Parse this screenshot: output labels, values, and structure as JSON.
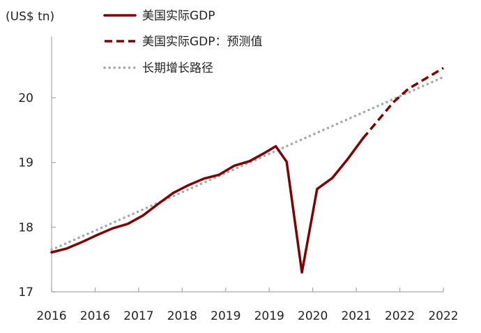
{
  "chart_data": {
    "type": "line",
    "title": "",
    "unit_label": "(US$ tn)",
    "xlabel": "",
    "ylabel": "(US$ tn)",
    "ylim": [
      17,
      20.95
    ],
    "y_ticks": [
      17,
      18,
      19,
      20
    ],
    "x_range": [
      0,
      18
    ],
    "x_ticks": [
      {
        "pos": 0,
        "label": "2016"
      },
      {
        "pos": 2,
        "label": "2016"
      },
      {
        "pos": 4,
        "label": "2017"
      },
      {
        "pos": 6,
        "label": "2018"
      },
      {
        "pos": 8,
        "label": "2019"
      },
      {
        "pos": 10,
        "label": "2019"
      },
      {
        "pos": 12,
        "label": "2020"
      },
      {
        "pos": 14,
        "label": "2021"
      },
      {
        "pos": 16,
        "label": "2022"
      },
      {
        "pos": 18,
        "label": "2022"
      }
    ],
    "grid": false,
    "legend_position": "top-center",
    "series": [
      {
        "name": "美国实际GDP",
        "style": "solid",
        "color": "#7f0000",
        "points": [
          {
            "x": 0,
            "y": 17.61
          },
          {
            "x": 0.7,
            "y": 17.67
          },
          {
            "x": 1.4,
            "y": 17.77
          },
          {
            "x": 2.1,
            "y": 17.88
          },
          {
            "x": 2.8,
            "y": 17.98
          },
          {
            "x": 3.5,
            "y": 18.05
          },
          {
            "x": 4.2,
            "y": 18.18
          },
          {
            "x": 4.9,
            "y": 18.36
          },
          {
            "x": 5.6,
            "y": 18.53
          },
          {
            "x": 6.3,
            "y": 18.65
          },
          {
            "x": 7.0,
            "y": 18.75
          },
          {
            "x": 7.7,
            "y": 18.81
          },
          {
            "x": 8.4,
            "y": 18.95
          },
          {
            "x": 9.1,
            "y": 19.02
          },
          {
            "x": 9.8,
            "y": 19.15
          },
          {
            "x": 10.3,
            "y": 19.25
          },
          {
            "x": 10.8,
            "y": 19.01
          },
          {
            "x": 11.5,
            "y": 17.3
          },
          {
            "x": 12.2,
            "y": 18.59
          },
          {
            "x": 12.9,
            "y": 18.76
          },
          {
            "x": 13.6,
            "y": 19.05
          },
          {
            "x": 14.3,
            "y": 19.37
          }
        ]
      },
      {
        "name": "美国实际GDP：预测值",
        "style": "dashed",
        "color": "#7f0000",
        "points": [
          {
            "x": 14.3,
            "y": 19.37
          },
          {
            "x": 15.0,
            "y": 19.65
          },
          {
            "x": 15.7,
            "y": 19.93
          },
          {
            "x": 16.4,
            "y": 20.14
          },
          {
            "x": 17.1,
            "y": 20.28
          },
          {
            "x": 17.8,
            "y": 20.42
          },
          {
            "x": 18.0,
            "y": 20.46
          }
        ]
      },
      {
        "name": "长期增长路径",
        "style": "dotted",
        "color": "#a6a6a6",
        "points": [
          {
            "x": 0,
            "y": 17.65
          },
          {
            "x": 18,
            "y": 20.32
          }
        ]
      }
    ]
  }
}
